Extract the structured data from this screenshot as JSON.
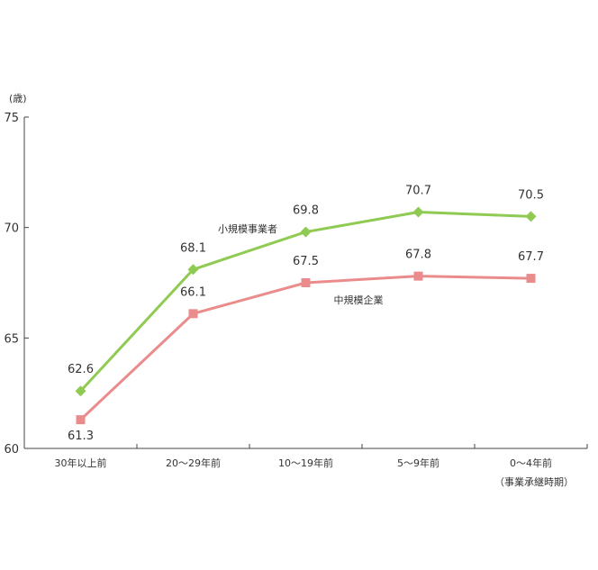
{
  "chart_data": {
    "type": "line",
    "ylabel": "(歳)",
    "ylim": [
      60,
      75
    ],
    "yticks": [
      "60",
      "65",
      "70",
      "75"
    ],
    "categories": [
      "30年以上前",
      "20～29年前",
      "10～19年前",
      "5～9年前",
      "0～4年前"
    ],
    "x_note": "（事業承継時期）",
    "series": [
      {
        "name": "小規模事業者",
        "values": [
          62.6,
          68.1,
          69.8,
          70.7,
          70.5
        ],
        "labels": [
          "62.6",
          "68.1",
          "69.8",
          "70.7",
          "70.5"
        ],
        "color": "#8fca52",
        "marker": "diamond"
      },
      {
        "name": "中規模企業",
        "values": [
          61.3,
          66.1,
          67.5,
          67.8,
          67.7
        ],
        "labels": [
          "61.3",
          "66.1",
          "67.5",
          "67.8",
          "67.7"
        ],
        "color": "#eb8c8c",
        "marker": "square"
      }
    ],
    "grid": false
  }
}
